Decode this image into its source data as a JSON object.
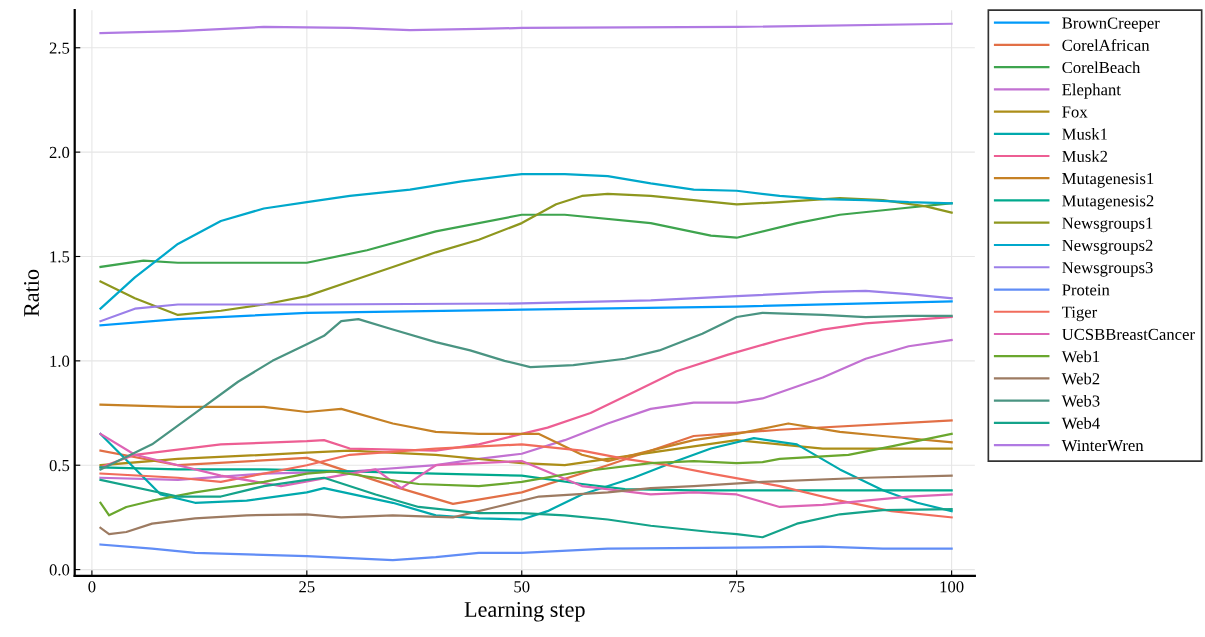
{
  "chart_data": {
    "type": "line",
    "xlabel": "Learning step",
    "ylabel": "Ratio",
    "xlim": [
      -2,
      102.7
    ],
    "xticks": [
      0,
      25,
      50,
      75,
      100
    ],
    "ylim": [
      -0.03,
      2.68
    ],
    "yticks": [
      {
        "value": 0,
        "label": "0.0"
      },
      {
        "value": 0.5,
        "label": "0.5"
      },
      {
        "value": 1.0,
        "label": "1.0"
      },
      {
        "value": 1.5,
        "label": "1.5"
      },
      {
        "value": 2.0,
        "label": "2.0"
      },
      {
        "value": 2.5,
        "label": "2.5"
      }
    ],
    "grid": true,
    "legend": "top right",
    "line_style": "solid",
    "marker": "none",
    "series": [
      {
        "name": "BrownCreeper",
        "color": "#009af9",
        "x": [
          1,
          10,
          25,
          50,
          75,
          100
        ],
        "values": [
          1.17,
          1.2,
          1.23,
          1.245,
          1.26,
          1.285
        ]
      },
      {
        "name": "CorelAfrican",
        "color": "#e26f46",
        "x": [
          1,
          10,
          25,
          35,
          42,
          50,
          60,
          70,
          80,
          100
        ],
        "values": [
          0.57,
          0.5,
          0.535,
          0.4,
          0.315,
          0.37,
          0.5,
          0.64,
          0.67,
          0.715
        ]
      },
      {
        "name": "CorelBeach",
        "color": "#3ea44e",
        "x": [
          1,
          6,
          10,
          25,
          32,
          40,
          50,
          55,
          65,
          72,
          75,
          82,
          87,
          94,
          100
        ],
        "values": [
          1.45,
          1.48,
          1.47,
          1.47,
          1.53,
          1.62,
          1.7,
          1.7,
          1.66,
          1.6,
          1.59,
          1.66,
          1.7,
          1.73,
          1.755
        ]
      },
      {
        "name": "Elephant",
        "color": "#c271d2",
        "x": [
          1,
          10,
          20,
          30,
          40,
          45,
          50,
          55,
          60,
          65,
          70,
          75,
          78,
          85,
          90,
          95,
          100
        ],
        "values": [
          0.44,
          0.43,
          0.46,
          0.47,
          0.5,
          0.53,
          0.555,
          0.62,
          0.7,
          0.77,
          0.8,
          0.8,
          0.82,
          0.92,
          1.01,
          1.07,
          1.1
        ]
      },
      {
        "name": "Fox",
        "color": "#ac8e18",
        "x": [
          1,
          10,
          25,
          30,
          40,
          50,
          55,
          65,
          75,
          85,
          100
        ],
        "values": [
          0.5,
          0.53,
          0.56,
          0.57,
          0.55,
          0.51,
          0.5,
          0.56,
          0.62,
          0.58,
          0.58
        ]
      },
      {
        "name": "Musk1",
        "color": "#00a9ad",
        "x": [
          1,
          8,
          12,
          18,
          25,
          27,
          35,
          40,
          45,
          50,
          53,
          57,
          63,
          68,
          72,
          77,
          82,
          87,
          92,
          96,
          100
        ],
        "values": [
          0.65,
          0.36,
          0.32,
          0.33,
          0.37,
          0.39,
          0.32,
          0.26,
          0.245,
          0.24,
          0.28,
          0.36,
          0.44,
          0.52,
          0.58,
          0.63,
          0.6,
          0.48,
          0.38,
          0.32,
          0.28
        ]
      },
      {
        "name": "Musk2",
        "color": "#ed5e93",
        "x": [
          1,
          5,
          15,
          25,
          27,
          30,
          40,
          45,
          50,
          53,
          58,
          63,
          68,
          74,
          80,
          85,
          90,
          100
        ],
        "values": [
          0.49,
          0.55,
          0.6,
          0.615,
          0.62,
          0.58,
          0.57,
          0.6,
          0.65,
          0.68,
          0.75,
          0.85,
          0.95,
          1.03,
          1.1,
          1.15,
          1.18,
          1.21
        ]
      },
      {
        "name": "Mutagenesis1",
        "color": "#c68125",
        "x": [
          1,
          10,
          20,
          25,
          29,
          35,
          40,
          45,
          52,
          57,
          60,
          65,
          70,
          75,
          81,
          87,
          92,
          100
        ],
        "values": [
          0.79,
          0.78,
          0.78,
          0.755,
          0.77,
          0.7,
          0.66,
          0.65,
          0.65,
          0.55,
          0.52,
          0.57,
          0.62,
          0.65,
          0.7,
          0.66,
          0.64,
          0.61
        ]
      },
      {
        "name": "Mutagenesis2",
        "color": "#00a98d",
        "x": [
          1,
          10,
          20,
          30,
          40,
          50,
          57,
          62,
          70,
          80,
          100
        ],
        "values": [
          0.49,
          0.48,
          0.48,
          0.47,
          0.46,
          0.45,
          0.41,
          0.385,
          0.38,
          0.38,
          0.38
        ]
      },
      {
        "name": "Newsgroups1",
        "color": "#8e971e",
        "x": [
          1,
          5,
          10,
          15,
          20,
          25,
          30,
          35,
          40,
          45,
          50,
          54,
          57,
          60,
          65,
          70,
          75,
          80,
          87,
          92,
          97,
          100
        ],
        "values": [
          1.38,
          1.3,
          1.22,
          1.24,
          1.27,
          1.31,
          1.38,
          1.45,
          1.52,
          1.58,
          1.66,
          1.75,
          1.79,
          1.8,
          1.79,
          1.77,
          1.75,
          1.76,
          1.78,
          1.77,
          1.74,
          1.71
        ]
      },
      {
        "name": "Newsgroups2",
        "color": "#00a8cb",
        "x": [
          1,
          5,
          10,
          15,
          20,
          25,
          30,
          37,
          43,
          50,
          55,
          60,
          65,
          70,
          75,
          80,
          85,
          90,
          95,
          100
        ],
        "values": [
          1.25,
          1.4,
          1.56,
          1.67,
          1.73,
          1.76,
          1.79,
          1.82,
          1.86,
          1.895,
          1.895,
          1.885,
          1.85,
          1.82,
          1.815,
          1.79,
          1.775,
          1.77,
          1.76,
          1.755
        ]
      },
      {
        "name": "Newsgroups3",
        "color": "#9b7fe9",
        "x": [
          1,
          5,
          10,
          25,
          50,
          65,
          75,
          85,
          90,
          95,
          100
        ],
        "values": [
          1.19,
          1.25,
          1.27,
          1.27,
          1.275,
          1.29,
          1.31,
          1.33,
          1.335,
          1.32,
          1.3
        ]
      },
      {
        "name": "Protein",
        "color": "#618df6",
        "x": [
          1,
          7,
          12,
          25,
          30,
          35,
          40,
          45,
          50,
          60,
          75,
          85,
          92,
          100
        ],
        "values": [
          0.12,
          0.1,
          0.08,
          0.065,
          0.055,
          0.045,
          0.06,
          0.08,
          0.08,
          0.1,
          0.105,
          0.11,
          0.1,
          0.1
        ]
      },
      {
        "name": "Tiger",
        "color": "#f16c5c",
        "x": [
          1,
          10,
          15,
          20,
          25,
          30,
          40,
          50,
          57,
          62,
          67,
          72,
          80,
          87,
          93,
          100
        ],
        "values": [
          0.46,
          0.44,
          0.42,
          0.46,
          0.5,
          0.55,
          0.58,
          0.6,
          0.57,
          0.53,
          0.5,
          0.46,
          0.4,
          0.33,
          0.28,
          0.25
        ]
      },
      {
        "name": "UCSBBreastCancer",
        "color": "#dd64b5",
        "x": [
          1,
          5,
          15,
          22,
          30,
          33,
          36,
          40,
          50,
          57,
          65,
          70,
          75,
          80,
          85,
          90,
          95,
          100
        ],
        "values": [
          0.65,
          0.55,
          0.45,
          0.4,
          0.46,
          0.48,
          0.39,
          0.5,
          0.52,
          0.4,
          0.36,
          0.37,
          0.36,
          0.3,
          0.31,
          0.33,
          0.35,
          0.36
        ]
      },
      {
        "name": "Web1",
        "color": "#6aa72e",
        "x": [
          1,
          2,
          4,
          7,
          12,
          20,
          25,
          28,
          33,
          38,
          45,
          50,
          57,
          65,
          70,
          75,
          78,
          80,
          88,
          93,
          100
        ],
        "values": [
          0.32,
          0.26,
          0.3,
          0.33,
          0.37,
          0.42,
          0.46,
          0.47,
          0.44,
          0.41,
          0.4,
          0.42,
          0.47,
          0.51,
          0.52,
          0.51,
          0.515,
          0.53,
          0.55,
          0.59,
          0.65
        ]
      },
      {
        "name": "Web2",
        "color": "#9d7b62",
        "x": [
          1,
          2,
          4,
          7,
          12,
          18,
          25,
          29,
          35,
          42,
          47,
          52,
          60,
          65,
          70,
          78,
          90,
          100
        ],
        "values": [
          0.2,
          0.17,
          0.18,
          0.22,
          0.245,
          0.26,
          0.265,
          0.25,
          0.26,
          0.25,
          0.3,
          0.35,
          0.37,
          0.39,
          0.4,
          0.42,
          0.44,
          0.45
        ]
      },
      {
        "name": "Web3",
        "color": "#4a9482",
        "x": [
          1,
          7,
          12,
          17,
          21,
          25,
          27,
          29,
          31,
          35,
          40,
          44,
          48,
          51,
          56,
          62,
          66,
          71,
          75,
          78,
          85,
          90,
          95,
          100
        ],
        "values": [
          0.48,
          0.6,
          0.75,
          0.9,
          1.0,
          1.08,
          1.12,
          1.19,
          1.2,
          1.15,
          1.09,
          1.05,
          1.0,
          0.97,
          0.98,
          1.01,
          1.05,
          1.13,
          1.21,
          1.23,
          1.22,
          1.21,
          1.215,
          1.215
        ]
      },
      {
        "name": "Web4",
        "color": "#14a38a",
        "x": [
          1,
          10,
          15,
          20,
          25,
          27,
          33,
          38,
          45,
          50,
          55,
          60,
          65,
          72,
          75,
          78,
          82,
          87,
          92,
          100
        ],
        "values": [
          0.43,
          0.35,
          0.35,
          0.4,
          0.43,
          0.44,
          0.36,
          0.3,
          0.27,
          0.27,
          0.26,
          0.24,
          0.21,
          0.18,
          0.17,
          0.155,
          0.22,
          0.265,
          0.285,
          0.29
        ]
      },
      {
        "name": "WinterWren",
        "color": "#b07ae3",
        "x": [
          1,
          10,
          20,
          30,
          37,
          45,
          50,
          75,
          100
        ],
        "values": [
          2.57,
          2.58,
          2.6,
          2.595,
          2.585,
          2.59,
          2.595,
          2.6,
          2.615
        ]
      }
    ]
  }
}
